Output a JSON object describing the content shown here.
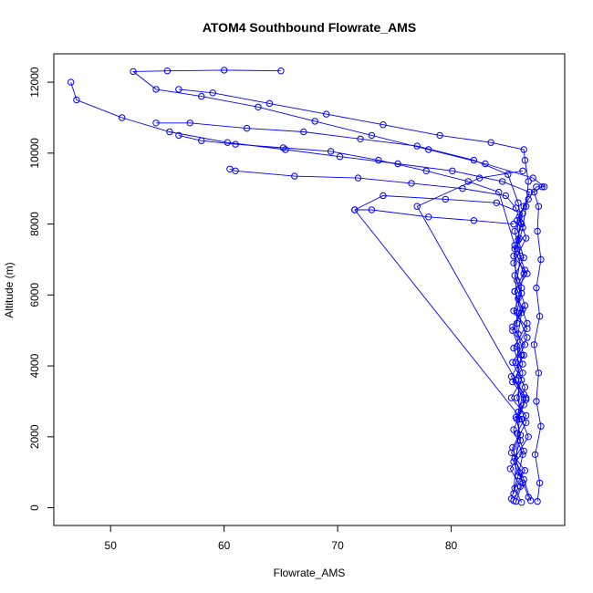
{
  "chart_data": {
    "type": "scatter",
    "title": "ATOM4 Southbound Flowrate_AMS",
    "xlabel": "Flowrate_AMS",
    "ylabel": "Altitude (m)",
    "xlim": [
      45,
      90
    ],
    "ylim": [
      -500,
      12800
    ],
    "x_ticks": [
      50,
      60,
      70,
      80
    ],
    "y_ticks": [
      0,
      2000,
      4000,
      6000,
      8000,
      10000,
      12000
    ],
    "point_style": "open-circle",
    "line_style": "connected",
    "grid": false,
    "legend": "none",
    "colors": {
      "series": "#0000ff",
      "axis": "#000000",
      "background": "#ffffff"
    },
    "series": [
      {
        "name": "",
        "points": [
          [
            85.5,
            200
          ],
          [
            86.1,
            600
          ],
          [
            85.2,
            1100
          ],
          [
            86.4,
            1600
          ],
          [
            85.8,
            2100
          ],
          [
            86.6,
            2600
          ],
          [
            85.3,
            3100
          ],
          [
            86.2,
            3600
          ],
          [
            85.7,
            4100
          ],
          [
            86.5,
            4600
          ],
          [
            85.4,
            5100
          ],
          [
            86.3,
            5600
          ],
          [
            85.6,
            6100
          ],
          [
            86.7,
            6600
          ],
          [
            85.5,
            7100
          ],
          [
            86.0,
            7600
          ],
          [
            85.8,
            8100
          ],
          [
            86.4,
            8500
          ],
          [
            86.9,
            8900
          ],
          [
            84.5,
            9200
          ],
          [
            80.1,
            9500
          ],
          [
            75.3,
            9700
          ],
          [
            70.2,
            9900
          ],
          [
            65.4,
            10100
          ],
          [
            60.3,
            10300
          ],
          [
            55.2,
            10600
          ],
          [
            51.0,
            11000
          ],
          [
            47.0,
            11500
          ],
          [
            46.5,
            12000
          ]
        ]
      },
      {
        "name": "",
        "points": [
          [
            86.2,
            150
          ],
          [
            85.6,
            550
          ],
          [
            86.5,
            1050
          ],
          [
            85.3,
            1550
          ],
          [
            86.1,
            2050
          ],
          [
            85.7,
            2550
          ],
          [
            86.6,
            3050
          ],
          [
            85.4,
            3550
          ],
          [
            86.3,
            4050
          ],
          [
            85.8,
            4550
          ],
          [
            86.7,
            5050
          ],
          [
            85.5,
            5550
          ],
          [
            86.2,
            6050
          ],
          [
            85.6,
            6550
          ],
          [
            86.4,
            7050
          ],
          [
            85.9,
            7550
          ],
          [
            86.1,
            8050
          ],
          [
            85.7,
            8450
          ],
          [
            84.8,
            8800
          ],
          [
            81.0,
            9000
          ],
          [
            76.5,
            9150
          ],
          [
            71.8,
            9300
          ],
          [
            66.2,
            9350
          ],
          [
            61.0,
            9500
          ],
          [
            60.5,
            9550
          ]
        ]
      },
      {
        "name": "",
        "points": [
          [
            87.0,
            200
          ],
          [
            86.4,
            800
          ],
          [
            85.6,
            1400
          ],
          [
            86.8,
            2000
          ],
          [
            85.9,
            2700
          ],
          [
            86.5,
            3400
          ],
          [
            85.4,
            4100
          ],
          [
            86.7,
            4800
          ],
          [
            85.8,
            5500
          ],
          [
            86.2,
            6200
          ],
          [
            85.5,
            6900
          ],
          [
            86.6,
            7600
          ],
          [
            86.0,
            8200
          ],
          [
            86.8,
            8700
          ],
          [
            87.5,
            9050
          ],
          [
            88.2,
            9050
          ],
          [
            87.2,
            9300
          ],
          [
            83.0,
            9700
          ],
          [
            78.0,
            10100
          ],
          [
            73.0,
            10500
          ],
          [
            68.0,
            10900
          ],
          [
            63.0,
            11300
          ],
          [
            58.0,
            11600
          ],
          [
            54.0,
            11800
          ],
          [
            52.0,
            12300
          ],
          [
            55.0,
            12320
          ],
          [
            60.0,
            12340
          ],
          [
            65.0,
            12320
          ]
        ]
      },
      {
        "name": "",
        "points": [
          [
            85.3,
            250
          ],
          [
            85.9,
            900
          ],
          [
            86.3,
            1500
          ],
          [
            85.5,
            2200
          ],
          [
            86.4,
            2900
          ],
          [
            85.7,
            3600
          ],
          [
            86.2,
            4300
          ],
          [
            85.4,
            5000
          ],
          [
            86.5,
            5700
          ],
          [
            85.8,
            6400
          ],
          [
            86.1,
            7100
          ],
          [
            85.6,
            7800
          ],
          [
            86.3,
            8300
          ],
          [
            84.0,
            8600
          ],
          [
            79.5,
            8700
          ],
          [
            74.0,
            8800
          ],
          [
            71.5,
            8400
          ],
          [
            73.0,
            8400
          ],
          [
            78.0,
            8200
          ],
          [
            82.0,
            8100
          ],
          [
            85.5,
            8000
          ]
        ]
      },
      {
        "name": "",
        "points": [
          [
            86.8,
            300
          ],
          [
            86.0,
            1000
          ],
          [
            85.4,
            1700
          ],
          [
            86.6,
            2400
          ],
          [
            85.8,
            3100
          ],
          [
            86.3,
            3800
          ],
          [
            85.5,
            4500
          ],
          [
            86.7,
            5200
          ],
          [
            85.9,
            5900
          ],
          [
            86.4,
            6600
          ],
          [
            85.6,
            7300
          ],
          [
            86.2,
            8000
          ],
          [
            85.9,
            8600
          ],
          [
            85.0,
            9400
          ],
          [
            82.0,
            9800
          ],
          [
            77.0,
            10200
          ],
          [
            72.0,
            10400
          ],
          [
            67.0,
            10600
          ],
          [
            62.0,
            10700
          ],
          [
            57.0,
            10850
          ],
          [
            54.0,
            10850
          ]
        ]
      },
      {
        "name": "",
        "points": [
          [
            85.7,
            180
          ],
          [
            86.3,
            700
          ],
          [
            85.5,
            1300
          ],
          [
            86.1,
            1900
          ],
          [
            85.8,
            2500
          ],
          [
            86.6,
            3100
          ],
          [
            85.3,
            3700
          ],
          [
            86.4,
            4300
          ],
          [
            85.9,
            4900
          ],
          [
            86.2,
            5500
          ],
          [
            85.6,
            6100
          ],
          [
            86.5,
            6700
          ],
          [
            85.8,
            7300
          ],
          [
            86.3,
            7900
          ],
          [
            86.6,
            8500
          ],
          [
            86.8,
            9200
          ],
          [
            86.5,
            9800
          ],
          [
            86.4,
            10100
          ],
          [
            83.5,
            10300
          ],
          [
            79.0,
            10500
          ],
          [
            74.0,
            10800
          ],
          [
            69.0,
            11100
          ],
          [
            64.0,
            11400
          ],
          [
            59.0,
            11700
          ],
          [
            56.0,
            11800
          ]
        ]
      },
      {
        "name": "",
        "points": [
          [
            87.6,
            180
          ],
          [
            87.8,
            700
          ],
          [
            87.4,
            1500
          ],
          [
            87.9,
            2300
          ],
          [
            87.5,
            3000
          ],
          [
            87.7,
            3800
          ],
          [
            87.3,
            4600
          ],
          [
            87.8,
            5400
          ],
          [
            87.5,
            6200
          ],
          [
            87.9,
            7000
          ],
          [
            87.6,
            7800
          ],
          [
            87.7,
            8500
          ],
          [
            87.3,
            8900
          ],
          [
            88.0,
            9050
          ]
        ]
      },
      {
        "name": "",
        "points": [
          [
            85.5,
            400
          ],
          [
            86.0,
            2500
          ],
          [
            85.8,
            5200
          ],
          [
            85.6,
            7400
          ],
          [
            84.2,
            8900
          ],
          [
            81.5,
            9200
          ],
          [
            77.8,
            9500
          ],
          [
            73.6,
            9800
          ],
          [
            69.4,
            10050
          ],
          [
            65.2,
            10150
          ],
          [
            61.0,
            10250
          ],
          [
            58.0,
            10350
          ],
          [
            56.0,
            10500
          ]
        ]
      },
      {
        "name": "",
        "points": [
          [
            86.2,
            2500
          ],
          [
            71.5,
            8400
          ]
        ]
      },
      {
        "name": "",
        "points": [
          [
            86.4,
            3200
          ],
          [
            77.0,
            8500
          ],
          [
            82.5,
            9300
          ],
          [
            86.3,
            9500
          ]
        ]
      }
    ]
  }
}
